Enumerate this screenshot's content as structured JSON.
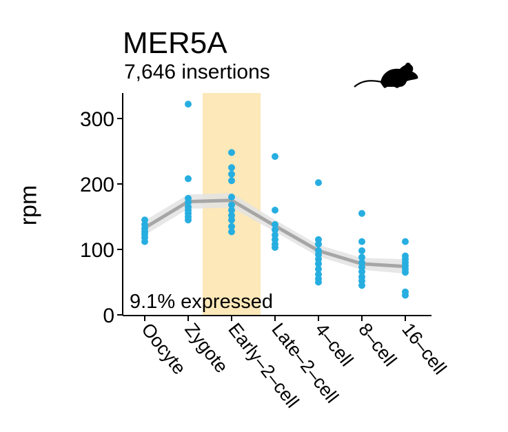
{
  "chart_data": {
    "type": "scatter",
    "title": "MER5A",
    "subtitle": "7,646 insertions",
    "ylabel": "rpm",
    "xlabel": "",
    "ylim": [
      0,
      335
    ],
    "yticks": [
      0,
      100,
      200,
      300
    ],
    "categories": [
      "Oocyte",
      "Zygote",
      "Early–2–cell",
      "Late–2–cell",
      "4–cell",
      "8–cell",
      "16–cell"
    ],
    "highlight_category": "Early–2–cell",
    "annotation": "9.1% expressed",
    "grid": false,
    "colors": {
      "points": "#27aee0",
      "trend": "#a6a6a6",
      "band": "#e3e3e3",
      "highlight": "#fce8b8"
    },
    "points": [
      [
        145,
        138,
        132,
        127,
        123,
        118,
        112
      ],
      [
        322,
        208,
        178,
        172,
        165,
        160,
        155,
        150,
        145
      ],
      [
        248,
        225,
        215,
        205,
        180,
        168,
        160,
        152,
        145,
        135,
        127
      ],
      [
        242,
        160,
        138,
        130,
        122,
        115,
        108,
        103
      ],
      [
        202,
        115,
        108,
        98,
        92,
        85,
        78,
        70,
        62,
        55,
        50
      ],
      [
        155,
        112,
        98,
        88,
        80,
        73,
        66,
        58,
        52,
        45
      ],
      [
        112,
        90,
        85,
        80,
        75,
        70,
        65,
        35,
        30
      ]
    ],
    "trend": [
      133,
      173,
      175,
      136,
      98,
      78,
      74
    ],
    "band_halfwidth": [
      11,
      11,
      11,
      9,
      9,
      9,
      11
    ],
    "icon": "mouse-icon"
  }
}
